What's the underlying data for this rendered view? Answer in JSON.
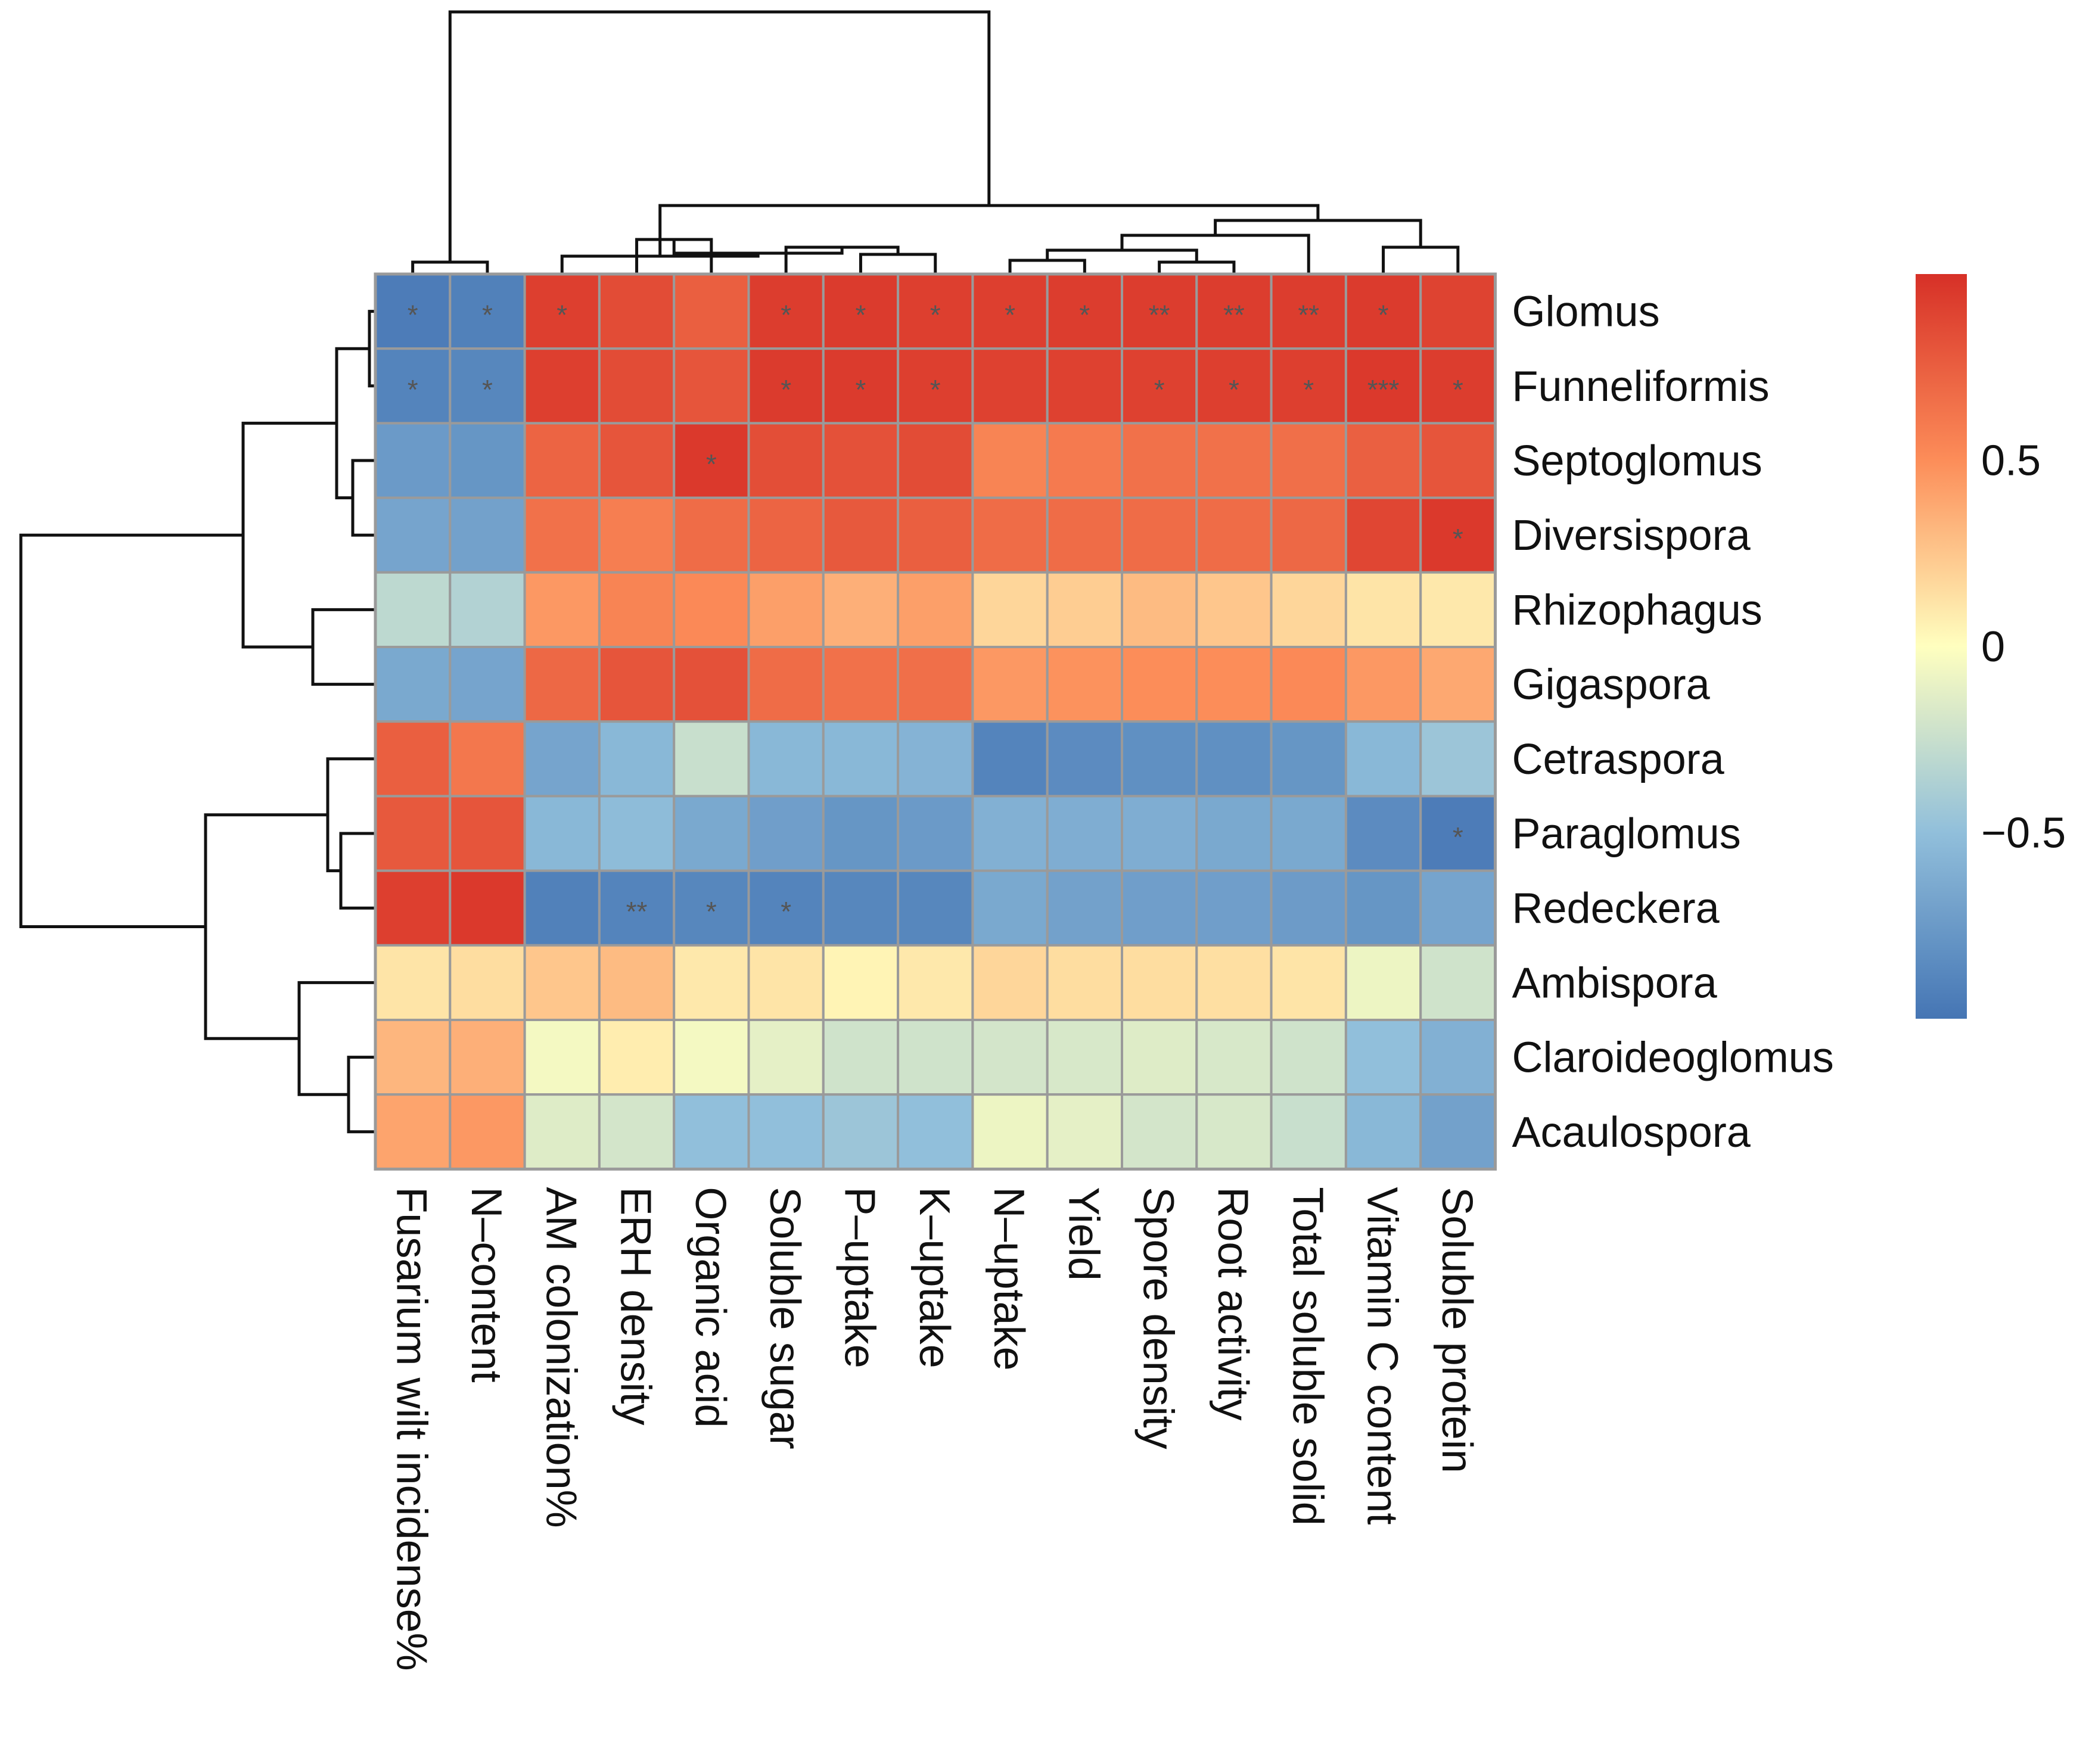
{
  "chart_data": {
    "type": "heatmap",
    "title": "",
    "rows": [
      "Glomus",
      "Funneliformis",
      "Septoglomus",
      "Diversispora",
      "Rhizophagus",
      "Gigaspora",
      "Cetraspora",
      "Paraglomus",
      "Redeckera",
      "Ambispora",
      "Claroideoglomus",
      "Acaulospora"
    ],
    "columns": [
      "Fusarium wilt incidense%",
      "N–content",
      "AM colonization%",
      "ERH density",
      "Organic acid",
      "Soluble sugar",
      "P–uptake",
      "K–uptake",
      "N–uptake",
      "Yield",
      "Spore density",
      "Root activity",
      "Total soluble solid",
      "Vitamin C content",
      "Soluble protein"
    ],
    "values": [
      [
        -0.95,
        -0.92,
        0.92,
        0.85,
        0.75,
        0.93,
        0.94,
        0.92,
        0.92,
        0.93,
        0.93,
        0.93,
        0.93,
        0.94,
        0.9
      ],
      [
        -0.9,
        -0.88,
        0.92,
        0.85,
        0.8,
        0.94,
        0.94,
        0.92,
        0.91,
        0.91,
        0.91,
        0.92,
        0.92,
        0.95,
        0.93
      ],
      [
        -0.75,
        -0.78,
        0.72,
        0.8,
        0.95,
        0.84,
        0.82,
        0.85,
        0.55,
        0.6,
        0.65,
        0.65,
        0.66,
        0.74,
        0.8
      ],
      [
        -0.68,
        -0.7,
        0.65,
        0.58,
        0.68,
        0.72,
        0.78,
        0.75,
        0.68,
        0.68,
        0.68,
        0.68,
        0.7,
        0.88,
        0.95
      ],
      [
        -0.3,
        -0.35,
        0.45,
        0.55,
        0.52,
        0.42,
        0.35,
        0.42,
        0.18,
        0.22,
        0.3,
        0.25,
        0.18,
        0.12,
        0.1
      ],
      [
        -0.65,
        -0.68,
        0.7,
        0.8,
        0.82,
        0.68,
        0.65,
        0.66,
        0.45,
        0.48,
        0.5,
        0.5,
        0.52,
        0.45,
        0.38
      ],
      [
        0.75,
        0.62,
        -0.68,
        -0.55,
        -0.25,
        -0.55,
        -0.55,
        -0.58,
        -0.9,
        -0.85,
        -0.82,
        -0.82,
        -0.78,
        -0.55,
        -0.45
      ],
      [
        0.78,
        0.8,
        -0.55,
        -0.52,
        -0.65,
        -0.72,
        -0.78,
        -0.75,
        -0.6,
        -0.62,
        -0.62,
        -0.65,
        -0.65,
        -0.85,
        -0.95
      ],
      [
        0.92,
        0.95,
        -0.92,
        -0.9,
        -0.88,
        -0.9,
        -0.88,
        -0.88,
        -0.65,
        -0.7,
        -0.72,
        -0.72,
        -0.74,
        -0.78,
        -0.68
      ],
      [
        0.12,
        0.15,
        0.25,
        0.3,
        0.1,
        0.12,
        0.05,
        0.1,
        0.18,
        0.15,
        0.15,
        0.14,
        0.12,
        -0.08,
        -0.22
      ],
      [
        0.32,
        0.35,
        -0.05,
        0.08,
        -0.05,
        -0.12,
        -0.22,
        -0.22,
        -0.2,
        -0.18,
        -0.15,
        -0.18,
        -0.22,
        -0.5,
        -0.6
      ],
      [
        0.4,
        0.45,
        -0.15,
        -0.2,
        -0.5,
        -0.5,
        -0.45,
        -0.5,
        -0.08,
        -0.12,
        -0.2,
        -0.18,
        -0.25,
        -0.55,
        -0.7
      ]
    ],
    "significance": [
      [
        "*",
        "*",
        "*",
        "",
        "",
        "*",
        "*",
        "*",
        "*",
        "*",
        "**",
        "**",
        "**",
        "*",
        ""
      ],
      [
        "*",
        "*",
        "",
        "",
        "",
        "*",
        "*",
        "*",
        "",
        "",
        "*",
        "*",
        "*",
        "***",
        "*"
      ],
      [
        "",
        "",
        "",
        "",
        "*",
        "",
        "",
        "",
        "",
        "",
        "",
        "",
        "",
        "",
        ""
      ],
      [
        "",
        "",
        "",
        "",
        "",
        "",
        "",
        "",
        "",
        "",
        "",
        "",
        "",
        "",
        "*"
      ],
      [
        "",
        "",
        "",
        "",
        "",
        "",
        "",
        "",
        "",
        "",
        "",
        "",
        "",
        "",
        ""
      ],
      [
        "",
        "",
        "",
        "",
        "",
        "",
        "",
        "",
        "",
        "",
        "",
        "",
        "",
        "",
        ""
      ],
      [
        "",
        "",
        "",
        "",
        "",
        "",
        "",
        "",
        "",
        "",
        "",
        "",
        "",
        "",
        ""
      ],
      [
        "",
        "",
        "",
        "",
        "",
        "",
        "",
        "",
        "",
        "",
        "",
        "",
        "",
        "",
        "*"
      ],
      [
        "",
        "",
        "",
        "**",
        "*",
        "*",
        "",
        "",
        "",
        "",
        "",
        "",
        "",
        "",
        ""
      ],
      [
        "",
        "",
        "",
        "",
        "",
        "",
        "",
        "",
        "",
        "",
        "",
        "",
        "",
        "",
        ""
      ],
      [
        "",
        "",
        "",
        "",
        "",
        "",
        "",
        "",
        "",
        "",
        "",
        "",
        "",
        "",
        ""
      ],
      [
        "",
        "",
        "",
        "",
        "",
        "",
        "",
        "",
        "",
        "",
        "",
        "",
        "",
        "",
        ""
      ]
    ],
    "color_scale": {
      "range": [
        -1,
        1
      ],
      "low_color": "#4575b4",
      "mid_color": "#ffffbf",
      "high_color": "#d73027",
      "ticks": [
        {
          "value": 0.5,
          "label": "0.5"
        },
        {
          "value": 0,
          "label": "0"
        },
        {
          "value": -0.5,
          "label": "−0.5"
        }
      ]
    },
    "legend_position": "right",
    "dendrograms": [
      "rows (left)",
      "columns (top)"
    ]
  }
}
